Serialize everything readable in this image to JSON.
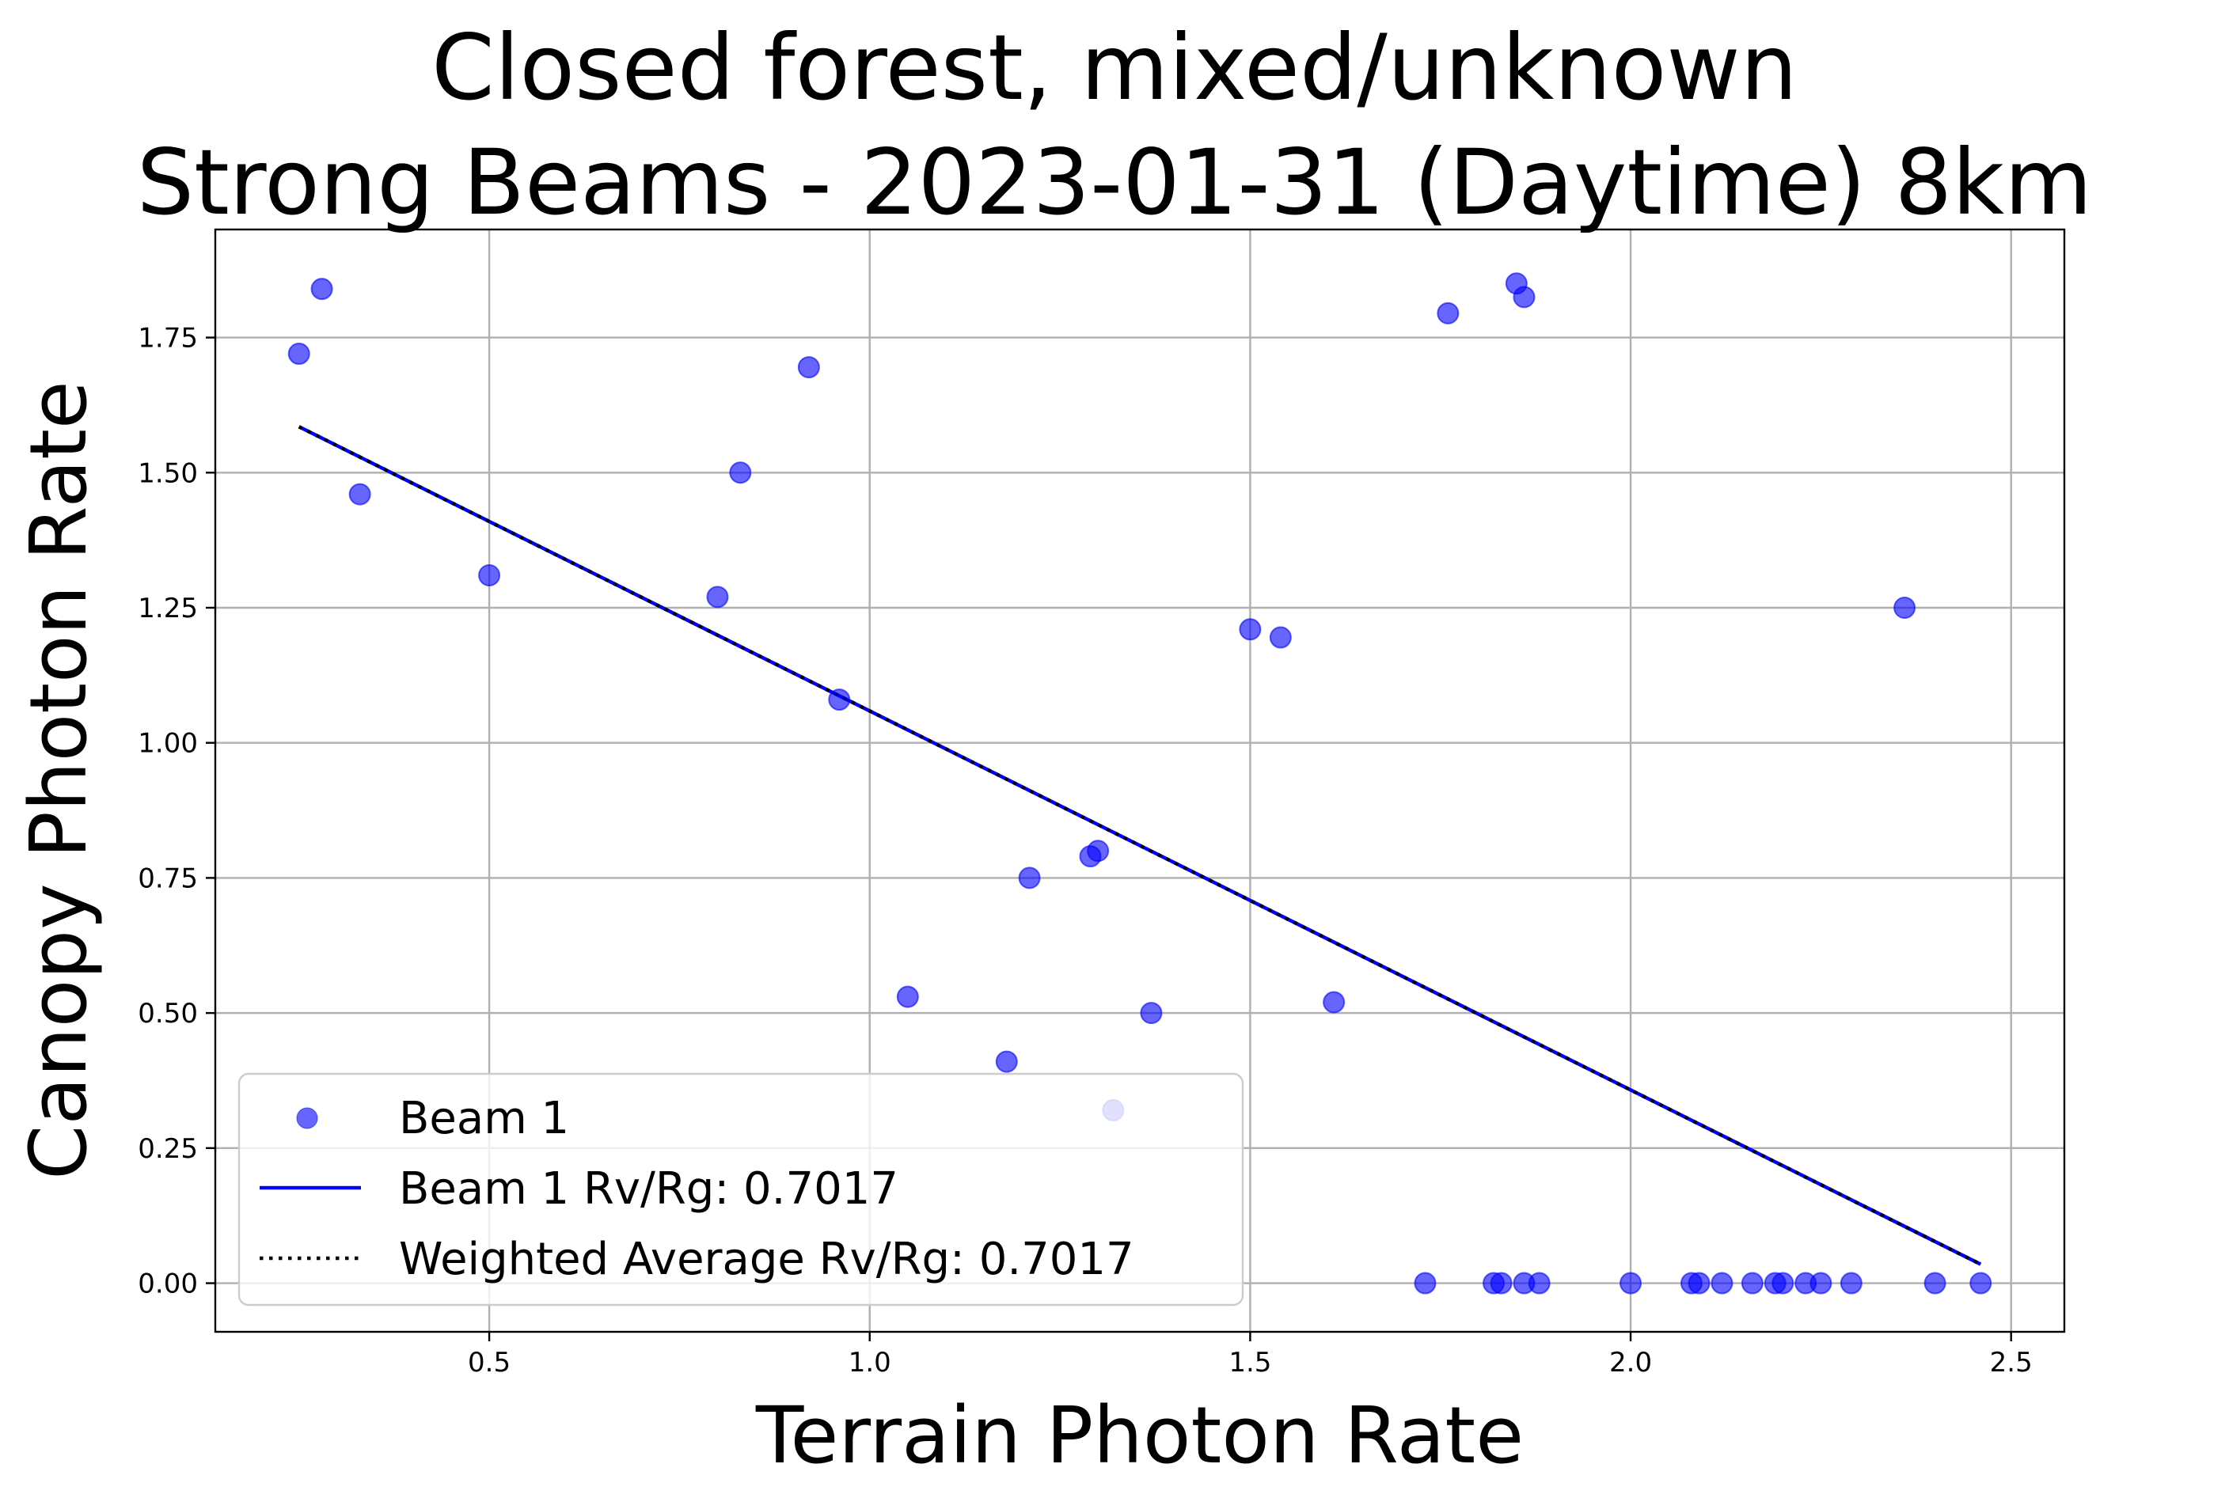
{
  "chart_data": {
    "type": "scatter",
    "title_lines": [
      "Closed forest, mixed/unknown",
      "Strong Beams - 2023-01-31 (Daytime) 8km"
    ],
    "xlabel": "Terrain Photon Rate",
    "ylabel": "Canopy Photon Rate",
    "xlim": [
      0.14,
      2.57
    ],
    "ylim": [
      -0.09,
      1.95
    ],
    "xticks": [
      0.5,
      1.0,
      1.5,
      2.0,
      2.5
    ],
    "xtick_labels": [
      "0.5",
      "1.0",
      "1.5",
      "2.0",
      "2.5"
    ],
    "yticks": [
      0.0,
      0.25,
      0.5,
      0.75,
      1.0,
      1.25,
      1.5,
      1.75
    ],
    "ytick_labels": [
      "0.00",
      "0.25",
      "0.50",
      "0.75",
      "1.00",
      "1.25",
      "1.50",
      "1.75"
    ],
    "grid": true,
    "legend_position": "lower-left",
    "series": [
      {
        "name": "Beam 1",
        "kind": "scatter",
        "color": "#0000ff",
        "points": [
          [
            0.25,
            1.72
          ],
          [
            0.28,
            1.84
          ],
          [
            0.33,
            1.46
          ],
          [
            0.5,
            1.31
          ],
          [
            0.8,
            1.27
          ],
          [
            0.83,
            1.5
          ],
          [
            0.92,
            1.695
          ],
          [
            0.96,
            1.08
          ],
          [
            1.05,
            0.53
          ],
          [
            1.18,
            0.41
          ],
          [
            1.21,
            0.75
          ],
          [
            1.29,
            0.79
          ],
          [
            1.3,
            0.8
          ],
          [
            1.32,
            0.32
          ],
          [
            1.37,
            0.5
          ],
          [
            1.5,
            1.21
          ],
          [
            1.54,
            1.195
          ],
          [
            1.61,
            0.52
          ],
          [
            1.76,
            1.795
          ],
          [
            1.85,
            1.85
          ],
          [
            1.86,
            1.825
          ],
          [
            2.36,
            1.25
          ],
          [
            1.73,
            0.0
          ],
          [
            1.82,
            0.0
          ],
          [
            1.83,
            0.0
          ],
          [
            1.86,
            0.0
          ],
          [
            1.88,
            0.0
          ],
          [
            2.0,
            0.0
          ],
          [
            2.08,
            0.0
          ],
          [
            2.09,
            0.0
          ],
          [
            2.12,
            0.0
          ],
          [
            2.16,
            0.0
          ],
          [
            2.19,
            0.0
          ],
          [
            2.2,
            0.0
          ],
          [
            2.23,
            0.0
          ],
          [
            2.25,
            0.0
          ],
          [
            2.29,
            0.0
          ],
          [
            2.4,
            0.0
          ],
          [
            2.46,
            0.0
          ]
        ]
      },
      {
        "name": "Beam 1 Rv/Rg: 0.7017",
        "kind": "line",
        "color": "#0000ff",
        "x": [
          0.25,
          2.46
        ],
        "y": [
          1.585,
          0.035
        ]
      },
      {
        "name": "Weighted Average Rv/Rg: 0.7017",
        "kind": "line",
        "style": "dotted",
        "color": "#000000",
        "x": [
          0.25,
          2.46
        ],
        "y": [
          1.585,
          0.035
        ]
      }
    ]
  }
}
